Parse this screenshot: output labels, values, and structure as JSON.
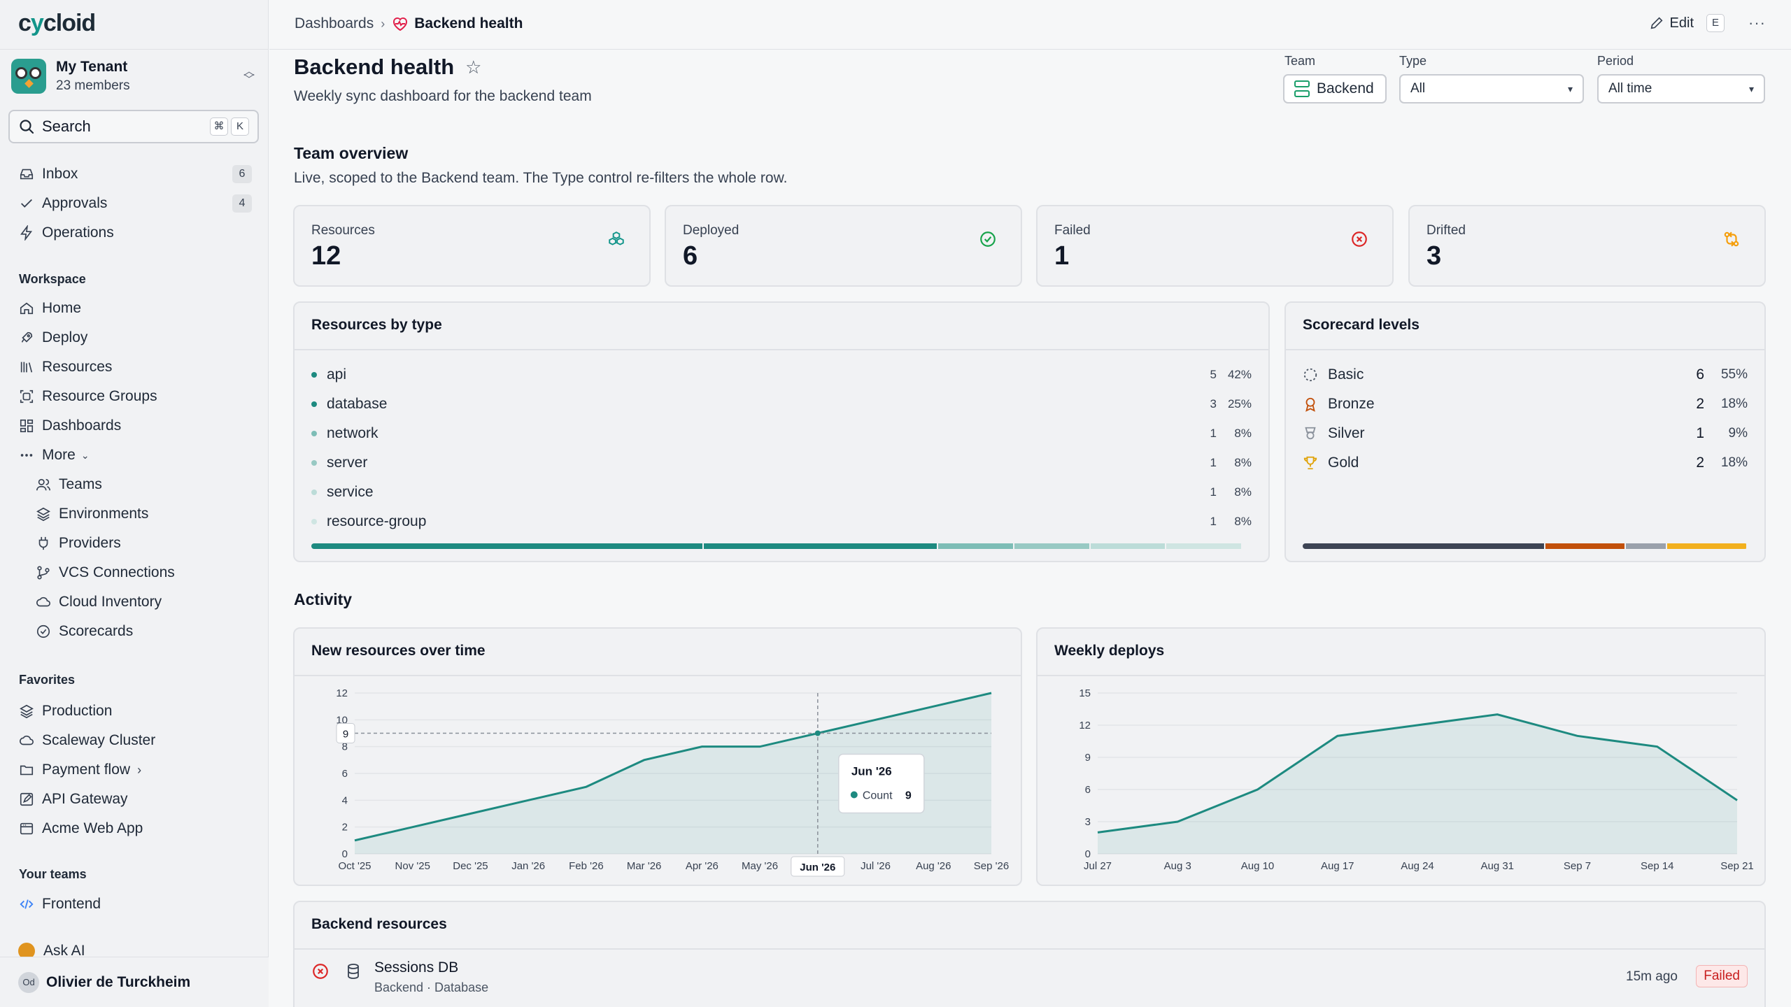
{
  "app": {
    "logo_prefix": "c",
    "logo_y": "y",
    "logo_suffix": "cloid"
  },
  "tenant": {
    "name": "My Tenant",
    "members": "23 members"
  },
  "search": {
    "label": "Search",
    "kbd1": "⌘",
    "kbd2": "K"
  },
  "nav_top": [
    {
      "label": "Inbox",
      "count": "6",
      "icon": "inbox-icon"
    },
    {
      "label": "Approvals",
      "count": "4",
      "icon": "check-icon"
    },
    {
      "label": "Operations",
      "icon": "bolt-icon"
    }
  ],
  "workspace": {
    "title": "Workspace",
    "items": [
      {
        "label": "Home",
        "icon": "home-icon"
      },
      {
        "label": "Deploy",
        "icon": "rocket-icon"
      },
      {
        "label": "Resources",
        "icon": "library-icon"
      },
      {
        "label": "Resource Groups",
        "icon": "group-icon"
      },
      {
        "label": "Dashboards",
        "icon": "grid-icon"
      },
      {
        "label": "More",
        "icon": "ellipsis-icon"
      }
    ],
    "more_items": [
      {
        "label": "Teams",
        "icon": "users-icon"
      },
      {
        "label": "Environments",
        "icon": "layers-icon"
      },
      {
        "label": "Providers",
        "icon": "plug-icon"
      },
      {
        "label": "VCS Connections",
        "icon": "git-branch-icon"
      },
      {
        "label": "Cloud Inventory",
        "icon": "cloud-icon"
      },
      {
        "label": "Scorecards",
        "icon": "badge-check-icon"
      }
    ]
  },
  "favorites": {
    "title": "Favorites",
    "items": [
      {
        "label": "Production",
        "icon": "layers-icon"
      },
      {
        "label": "Scaleway Cluster",
        "icon": "cloud-icon"
      },
      {
        "label": "Payment flow",
        "icon": "folder-icon"
      },
      {
        "label": "API Gateway",
        "icon": "square-pen-icon"
      },
      {
        "label": "Acme Web App",
        "icon": "app-window-icon"
      }
    ]
  },
  "your_teams": {
    "title": "Your teams",
    "items": [
      {
        "label": "Frontend",
        "icon": "code-icon"
      }
    ]
  },
  "ask_ai": "Ask AI",
  "user": {
    "initials": "Od",
    "name": "Olivier de Turckheim"
  },
  "breadcrumb": {
    "parent": "Dashboards",
    "current": "Backend health"
  },
  "actions": {
    "edit": "Edit",
    "edit_kbd": "E",
    "more": "···"
  },
  "header": {
    "title": "Backend health",
    "description": "Weekly sync dashboard for the backend team"
  },
  "filters": {
    "team": {
      "label": "Team",
      "value": "Backend"
    },
    "type": {
      "label": "Type",
      "value": "All"
    },
    "period": {
      "label": "Period",
      "value": "All time"
    }
  },
  "team_overview": {
    "title": "Team overview",
    "subtitle": "Live, scoped to the Backend team. The Type control re-filters the whole row.",
    "stats": [
      {
        "label": "Resources",
        "value": "12",
        "icon": "cubes-icon",
        "color": "#12958a"
      },
      {
        "label": "Deployed",
        "value": "6",
        "icon": "check-circle-icon",
        "color": "#16a34a"
      },
      {
        "label": "Failed",
        "value": "1",
        "icon": "x-circle-icon",
        "color": "#dc2626"
      },
      {
        "label": "Drifted",
        "value": "3",
        "icon": "arrows-swap-icon",
        "color": "#f59e0b"
      }
    ]
  },
  "resources_by_type": {
    "title": "Resources by type",
    "rows": [
      {
        "name": "api",
        "count": "5",
        "pct": "42%",
        "fraction": 0.42,
        "color": "#1d8a80"
      },
      {
        "name": "database",
        "count": "3",
        "pct": "25%",
        "fraction": 0.25,
        "color": "#1d8a80"
      },
      {
        "name": "network",
        "count": "1",
        "pct": "8%",
        "fraction": 0.08,
        "color": "#7dbdb6"
      },
      {
        "name": "server",
        "count": "1",
        "pct": "8%",
        "fraction": 0.08,
        "color": "#98c9c3"
      },
      {
        "name": "service",
        "count": "1",
        "pct": "8%",
        "fraction": 0.08,
        "color": "#bcdcd8"
      },
      {
        "name": "resource-group",
        "count": "1",
        "pct": "8%",
        "fraction": 0.08,
        "color": "#cfe5e2"
      }
    ]
  },
  "scorecard_levels": {
    "title": "Scorecard levels",
    "rows": [
      {
        "name": "Basic",
        "count": "6",
        "pct": "55%",
        "fraction": 0.55,
        "color": "#3d4454",
        "icon": "dashed-circle-icon"
      },
      {
        "name": "Bronze",
        "count": "2",
        "pct": "18%",
        "fraction": 0.18,
        "color": "#c2500a",
        "icon": "award-icon"
      },
      {
        "name": "Silver",
        "count": "1",
        "pct": "9%",
        "fraction": 0.09,
        "color": "#9aa1ab",
        "icon": "shield-medal-icon"
      },
      {
        "name": "Gold",
        "count": "2",
        "pct": "18%",
        "fraction": 0.18,
        "color": "#f2b01e",
        "icon": "trophy-icon"
      }
    ]
  },
  "activity": {
    "title": "Activity"
  },
  "chart_data": [
    {
      "type": "area",
      "title": "New resources over time",
      "x": [
        "Oct '25",
        "Nov '25",
        "Dec '25",
        "Jan '26",
        "Feb '26",
        "Mar '26",
        "Apr '26",
        "May '26",
        "Jun '26",
        "Jul '26",
        "Aug '26",
        "Sep '26"
      ],
      "values": [
        1,
        2,
        3,
        4,
        5,
        7,
        8,
        8,
        9,
        10,
        11,
        12
      ],
      "yticks": [
        0,
        2,
        4,
        6,
        8,
        10,
        12
      ],
      "ylim": [
        0,
        12
      ],
      "color": "#1d8a80",
      "grid": true,
      "tooltip": {
        "title": "Jun '26",
        "label": "Count",
        "value": "9",
        "index": 8
      },
      "crosshair_label": "9"
    },
    {
      "type": "area",
      "title": "Weekly deploys",
      "x": [
        "Jul 27",
        "Aug 3",
        "Aug 10",
        "Aug 17",
        "Aug 24",
        "Aug 31",
        "Sep 7",
        "Sep 14",
        "Sep 21"
      ],
      "values": [
        2,
        3,
        6,
        11,
        12,
        13,
        11,
        10,
        5
      ],
      "yticks": [
        0,
        3,
        6,
        9,
        12,
        15
      ],
      "ylim": [
        0,
        15
      ],
      "color": "#1d8a80",
      "grid": true
    }
  ],
  "backend_resources": {
    "title": "Backend resources",
    "rows": [
      {
        "name": "Sessions DB",
        "meta": "Backend · Database",
        "time": "15m ago",
        "status": "Failed"
      }
    ]
  }
}
